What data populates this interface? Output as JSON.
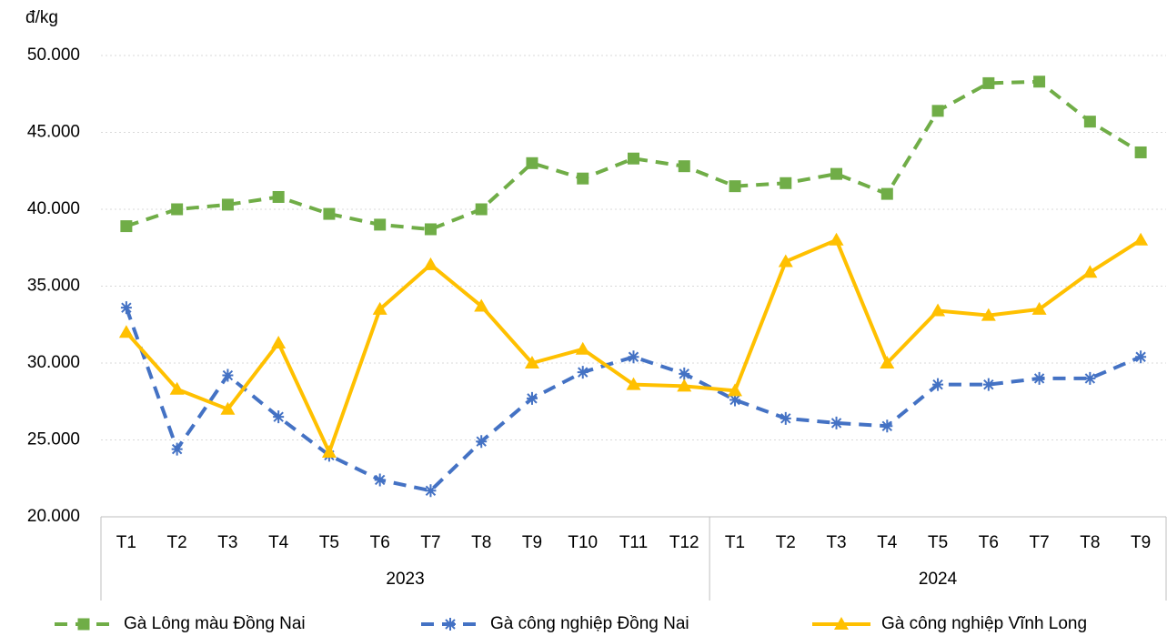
{
  "chart_data": {
    "type": "line",
    "y_label": "đ/kg",
    "groups": [
      {
        "name": "2023",
        "categories": [
          "T1",
          "T2",
          "T3",
          "T4",
          "T5",
          "T6",
          "T7",
          "T8",
          "T9",
          "T10",
          "T11",
          "T12"
        ]
      },
      {
        "name": "2024",
        "categories": [
          "T1",
          "T2",
          "T3",
          "T4",
          "T5",
          "T6",
          "T7",
          "T8",
          "T9"
        ]
      }
    ],
    "series": [
      {
        "name": "Gà Lông màu Đồng Nai",
        "color": "#70ad47",
        "marker": "square",
        "dashed": true,
        "values": [
          38900,
          40000,
          40300,
          40800,
          39700,
          39000,
          38700,
          40000,
          43000,
          42000,
          43300,
          42800,
          41500,
          41700,
          42300,
          41000,
          46400,
          48200,
          48300,
          45700,
          43700
        ]
      },
      {
        "name": "Gà công nghiệp Đồng Nai",
        "color": "#4472c4",
        "marker": "asterisk",
        "dashed": true,
        "values": [
          33600,
          24400,
          29200,
          26500,
          24000,
          22400,
          21700,
          24900,
          27700,
          29400,
          30400,
          29300,
          27600,
          26400,
          26100,
          25900,
          28600,
          28600,
          29000,
          29000,
          30400
        ]
      },
      {
        "name": "Gà công nghiệp Vĩnh Long",
        "color": "#ffc000",
        "marker": "triangle",
        "dashed": false,
        "values": [
          32000,
          28300,
          27000,
          31300,
          24200,
          33500,
          36400,
          33700,
          30000,
          30900,
          28600,
          28500,
          28200,
          36600,
          38000,
          30000,
          33400,
          33100,
          33500,
          35900,
          38000
        ]
      }
    ],
    "ylim": [
      20000,
      50000
    ],
    "yticks": [
      {
        "value": 20000,
        "label": "20.000"
      },
      {
        "value": 25000,
        "label": "25.000"
      },
      {
        "value": 30000,
        "label": "30.000"
      },
      {
        "value": 35000,
        "label": "35.000"
      },
      {
        "value": 40000,
        "label": "40.000"
      },
      {
        "value": 45000,
        "label": "45.000"
      },
      {
        "value": 50000,
        "label": "50.000"
      }
    ],
    "grid": true,
    "legend": "bottom"
  }
}
